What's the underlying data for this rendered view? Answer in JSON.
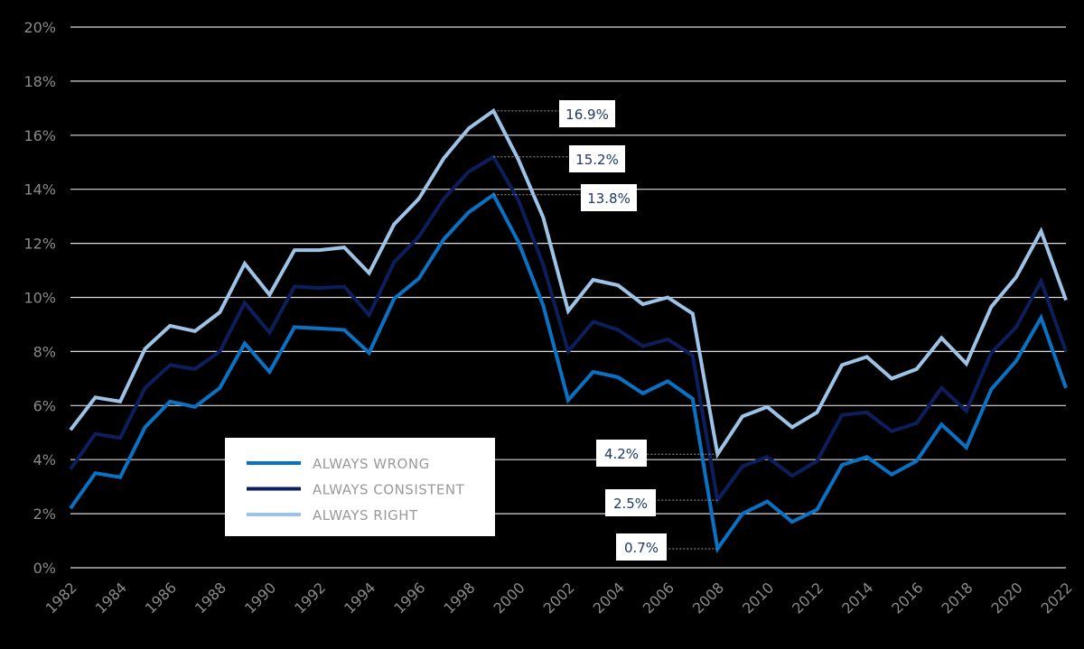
{
  "chart_data": {
    "type": "line",
    "x": [
      1982,
      1983,
      1984,
      1985,
      1986,
      1987,
      1988,
      1989,
      1990,
      1991,
      1992,
      1993,
      1994,
      1995,
      1996,
      1997,
      1998,
      1999,
      2000,
      2001,
      2002,
      2003,
      2004,
      2005,
      2006,
      2007,
      2008,
      2009,
      2010,
      2011,
      2012,
      2013,
      2014,
      2015,
      2016,
      2017,
      2018,
      2019,
      2020,
      2021,
      2022
    ],
    "x_tick_labels": [
      "1982",
      "1984",
      "1986",
      "1988",
      "1990",
      "1992",
      "1994",
      "1996",
      "1998",
      "2000",
      "2002",
      "2004",
      "2006",
      "2008",
      "2010",
      "2012",
      "2014",
      "2016",
      "2018",
      "2020",
      "2022"
    ],
    "y_tick_labels": [
      "0%",
      "2%",
      "4%",
      "6%",
      "8%",
      "10%",
      "12%",
      "14%",
      "16%",
      "18%",
      "20%"
    ],
    "ylim": [
      0,
      20
    ],
    "grid": true,
    "legend_position": "lower-left",
    "series": [
      {
        "name": "ALWAYS RIGHT",
        "color": "#9dc3e6",
        "values": [
          5.1,
          6.3,
          6.15,
          8.1,
          8.95,
          8.75,
          9.45,
          11.25,
          10.1,
          11.75,
          11.75,
          11.85,
          10.9,
          12.7,
          13.65,
          15.15,
          16.25,
          16.9,
          15.1,
          12.95,
          9.5,
          10.65,
          10.45,
          9.75,
          10.0,
          9.4,
          4.2,
          5.6,
          5.95,
          5.2,
          5.75,
          7.5,
          7.8,
          7.0,
          7.35,
          8.5,
          7.55,
          9.65,
          10.75,
          12.45,
          9.9
        ]
      },
      {
        "name": "ALWAYS CONSISTENT",
        "color": "#0c1f5c",
        "values": [
          3.65,
          4.95,
          4.8,
          6.65,
          7.5,
          7.35,
          8.0,
          9.8,
          8.7,
          10.4,
          10.35,
          10.4,
          9.35,
          11.3,
          12.25,
          13.65,
          14.65,
          15.2,
          13.6,
          11.2,
          8.0,
          9.1,
          8.8,
          8.2,
          8.45,
          7.85,
          2.5,
          3.75,
          4.1,
          3.4,
          3.95,
          5.65,
          5.75,
          5.05,
          5.35,
          6.65,
          5.8,
          7.95,
          8.9,
          10.6,
          8.0
        ]
      },
      {
        "name": "ALWAYS WRONG",
        "color": "#0a72c4",
        "values": [
          2.2,
          3.5,
          3.35,
          5.2,
          6.15,
          5.95,
          6.65,
          8.3,
          7.25,
          8.9,
          8.85,
          8.8,
          7.95,
          9.95,
          10.7,
          12.15,
          13.15,
          13.8,
          12.05,
          9.7,
          6.2,
          7.25,
          7.05,
          6.45,
          6.9,
          6.25,
          0.7,
          2.0,
          2.45,
          1.7,
          2.15,
          3.8,
          4.1,
          3.45,
          3.95,
          5.3,
          4.45,
          6.6,
          7.65,
          9.25,
          6.65
        ]
      }
    ],
    "legend": [
      {
        "label": "ALWAYS WRONG",
        "color": "#0a72c4"
      },
      {
        "label": "ALWAYS CONSISTENT",
        "color": "#0c1f5c"
      },
      {
        "label": "ALWAYS RIGHT",
        "color": "#9dc3e6"
      }
    ],
    "annotations": [
      {
        "text": "16.9%",
        "x": 1999,
        "y": 16.9
      },
      {
        "text": "15.2%",
        "x": 1999,
        "y": 15.2
      },
      {
        "text": "13.8%",
        "x": 1999,
        "y": 13.8
      },
      {
        "text": "4.2%",
        "x": 2008,
        "y": 4.2
      },
      {
        "text": "2.5%",
        "x": 2008,
        "y": 2.5
      },
      {
        "text": "0.7%",
        "x": 2008,
        "y": 0.7
      }
    ]
  }
}
